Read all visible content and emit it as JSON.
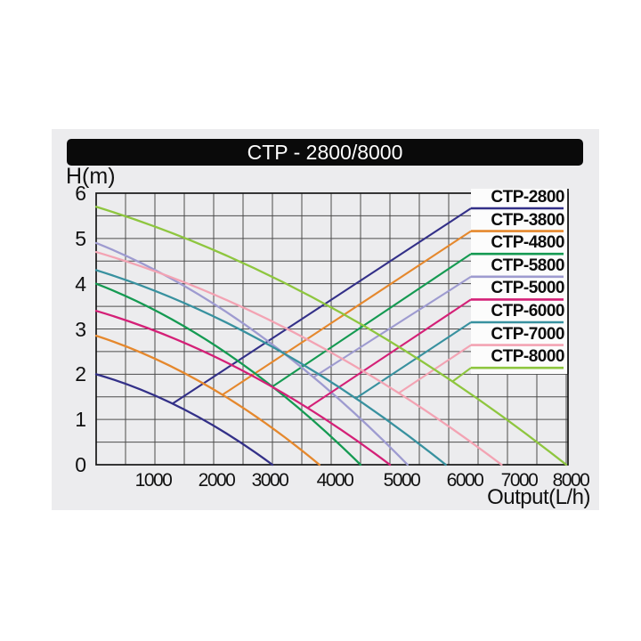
{
  "page": {
    "title": "CTP - 2800/8000"
  },
  "chart_data": {
    "type": "line",
    "title": "CTP - 2800/8000",
    "xlabel": "Output(L/h)",
    "ylabel": "H(m)",
    "xlim": [
      0,
      8060
    ],
    "ylim": [
      0,
      6
    ],
    "x_ticks": [
      1000,
      2000,
      3000,
      4000,
      5000,
      6000,
      7000,
      8000
    ],
    "y_ticks": [
      0,
      1,
      2,
      3,
      4,
      5,
      6
    ],
    "grid": {
      "x_step": 500,
      "y_step": 0.5,
      "on": true
    },
    "legend_position": "inside-top-right",
    "series": [
      {
        "name": "CTP-2800",
        "color": "#333088",
        "max_head_m": 2.0,
        "max_flow_lh": 3000,
        "curvature": 0.72,
        "legend_branch_flow_lh": 1300,
        "points": [
          [
            0,
            2.0
          ],
          [
            750,
            1.67
          ],
          [
            1500,
            1.22
          ],
          [
            2250,
            0.67
          ],
          [
            3000,
            0
          ]
        ]
      },
      {
        "name": "CTP-3800",
        "color": "#e5882d",
        "max_head_m": 2.85,
        "max_flow_lh": 3800,
        "curvature": 0.72,
        "legend_branch_flow_lh": 2150,
        "points": [
          [
            0,
            2.85
          ],
          [
            950,
            2.37
          ],
          [
            1900,
            1.74
          ],
          [
            2850,
            0.95
          ],
          [
            3800,
            0
          ]
        ]
      },
      {
        "name": "CTP-4800",
        "color": "#159a52",
        "max_head_m": 4.0,
        "max_flow_lh": 4500,
        "curvature": 0.72,
        "legend_branch_flow_lh": 3000,
        "points": [
          [
            0,
            4.0
          ],
          [
            1125,
            3.33
          ],
          [
            2250,
            2.44
          ],
          [
            3375,
            1.33
          ],
          [
            4500,
            0
          ]
        ]
      },
      {
        "name": "CTP-5800",
        "color": "#9e9bd0",
        "max_head_m": 4.9,
        "max_flow_lh": 5300,
        "curvature": 0.72,
        "legend_branch_flow_lh": 3700,
        "points": [
          [
            0,
            4.9
          ],
          [
            1325,
            4.08
          ],
          [
            2650,
            2.99
          ],
          [
            3975,
            1.63
          ],
          [
            5300,
            0
          ]
        ]
      },
      {
        "name": "CTP-5000",
        "color": "#d42077",
        "max_head_m": 3.4,
        "max_flow_lh": 5000,
        "curvature": 0.72,
        "legend_branch_flow_lh": 3600,
        "points": [
          [
            0,
            3.4
          ],
          [
            1250,
            2.83
          ],
          [
            2500,
            2.07
          ],
          [
            3750,
            1.13
          ],
          [
            5000,
            0
          ]
        ]
      },
      {
        "name": "CTP-6000",
        "color": "#38919f",
        "max_head_m": 4.3,
        "max_flow_lh": 5950,
        "curvature": 0.72,
        "legend_branch_flow_lh": 4420,
        "points": [
          [
            0,
            4.3
          ],
          [
            1488,
            3.58
          ],
          [
            2975,
            2.62
          ],
          [
            4463,
            1.43
          ],
          [
            5950,
            0
          ]
        ]
      },
      {
        "name": "CTP-7000",
        "color": "#f3a3b3",
        "max_head_m": 4.7,
        "max_flow_lh": 6900,
        "curvature": 0.72,
        "legend_branch_flow_lh": 5150,
        "points": [
          [
            0,
            4.7
          ],
          [
            1725,
            3.91
          ],
          [
            3450,
            2.87
          ],
          [
            5175,
            1.56
          ],
          [
            6900,
            0
          ]
        ]
      },
      {
        "name": "CTP-8000",
        "color": "#8ec63f",
        "max_head_m": 5.7,
        "max_flow_lh": 8000,
        "curvature": 0.72,
        "legend_branch_flow_lh": 6065,
        "points": [
          [
            0,
            5.7
          ],
          [
            2000,
            4.75
          ],
          [
            4000,
            3.48
          ],
          [
            6000,
            1.9
          ],
          [
            8000,
            0
          ]
        ]
      }
    ],
    "colors": {
      "panel_bg": "#ececee",
      "title_bg": "#0a0a0a",
      "title_fg": "#ffffff",
      "grid_line": "#4b4b4b",
      "plot_border": "#161616",
      "legend_bg": "#fcfcfc",
      "tick_text": "#111111"
    }
  }
}
